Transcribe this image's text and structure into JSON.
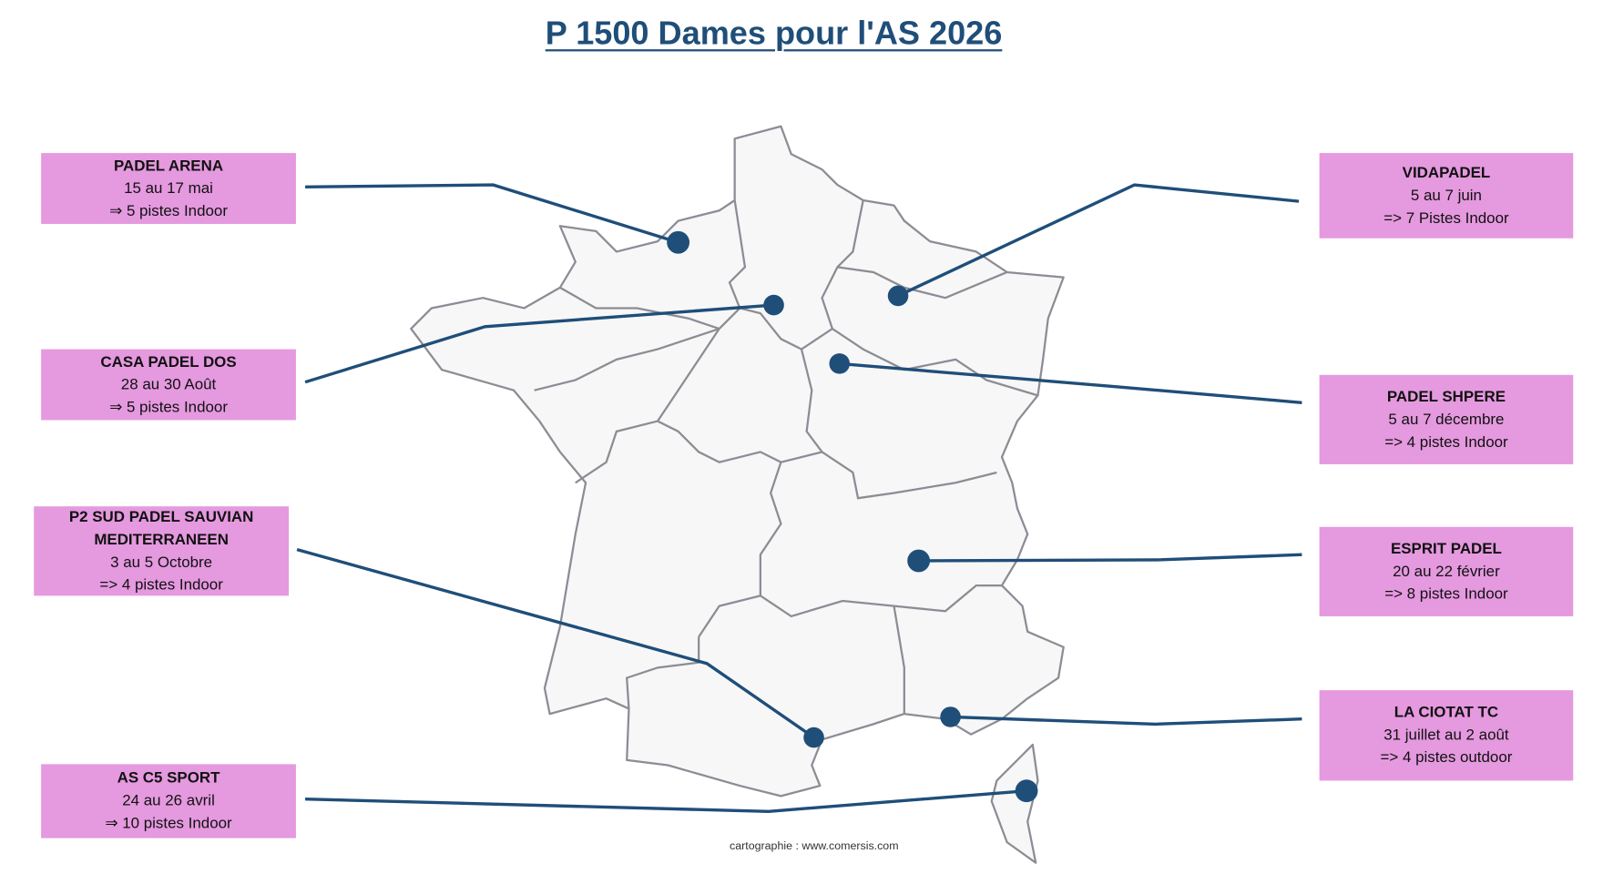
{
  "title": "P 1500 Dames pour l'AS 2026",
  "credit": "cartographie :  www.comersis.com",
  "colors": {
    "box": "#e599df",
    "line": "#1f4e79",
    "map_fill": "#f7f7f7",
    "map_border": "#8c8c95"
  },
  "clubs": [
    {
      "name": "PADEL ARENA",
      "dates": "15 au 17 mai",
      "courts": "⇒ 5 pistes Indoor"
    },
    {
      "name": "CASA PADEL DOS",
      "dates": "28 au 30 Août",
      "courts": "⇒ 5 pistes Indoor"
    },
    {
      "name": "P2 SUD PADEL SAUVIAN MEDITERRANEEN",
      "dates": "3 au 5 Octobre",
      "courts": "=> 4 pistes Indoor"
    },
    {
      "name": "AS C5 SPORT",
      "dates": "24 au 26 avril",
      "courts": "⇒ 10 pistes Indoor"
    },
    {
      "name": "VIDAPADEL",
      "dates": "5 au 7 juin",
      "courts": "=> 7 Pistes Indoor"
    },
    {
      "name": "PADEL SHPERE",
      "dates": "5 au 7 décembre",
      "courts": "=> 4 pistes Indoor"
    },
    {
      "name": "ESPRIT PADEL",
      "dates": "20 au 22 février",
      "courts": "=> 8 pistes Indoor"
    },
    {
      "name": "LA CIOTAT TC",
      "dates": "31 juillet au 2 août",
      "courts": "=> 4 pistes outdoor"
    }
  ]
}
